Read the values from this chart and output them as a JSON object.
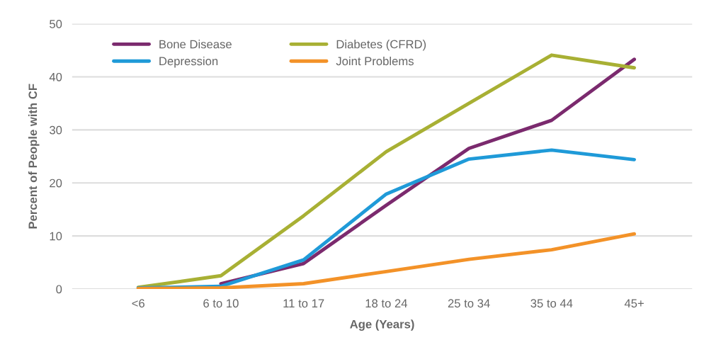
{
  "chart_data": {
    "type": "line",
    "xlabel": "Age (Years)",
    "ylabel": "Percent of People with CF",
    "categories": [
      "<6",
      "6 to 10",
      "11 to 17",
      "18 to 24",
      "25 to 34",
      "35 to 44",
      "45+"
    ],
    "series": [
      {
        "name": "Bone Disease",
        "color": "#7b2a6e",
        "values": [
          null,
          1,
          4.8,
          15.8,
          26.5,
          31.8,
          43.3
        ]
      },
      {
        "name": "Diabetes (CFRD)",
        "color": "#a8b034",
        "values": [
          0.3,
          2.5,
          13.8,
          25.9,
          35,
          44.1,
          41.7
        ]
      },
      {
        "name": "Depression",
        "color": "#1f9ad8",
        "values": [
          0.2,
          0.5,
          5.5,
          17.9,
          24.5,
          26.2,
          24.4
        ]
      },
      {
        "name": "Joint Problems",
        "color": "#f39228",
        "values": [
          0.1,
          0.2,
          1.0,
          3.3,
          5.6,
          7.4,
          10.4
        ]
      }
    ],
    "ylim": [
      0,
      50
    ],
    "yticks": [
      0,
      10,
      20,
      30,
      40,
      50
    ],
    "grid": "y",
    "legend": "top left",
    "marker": "none",
    "line_style": "solid"
  }
}
